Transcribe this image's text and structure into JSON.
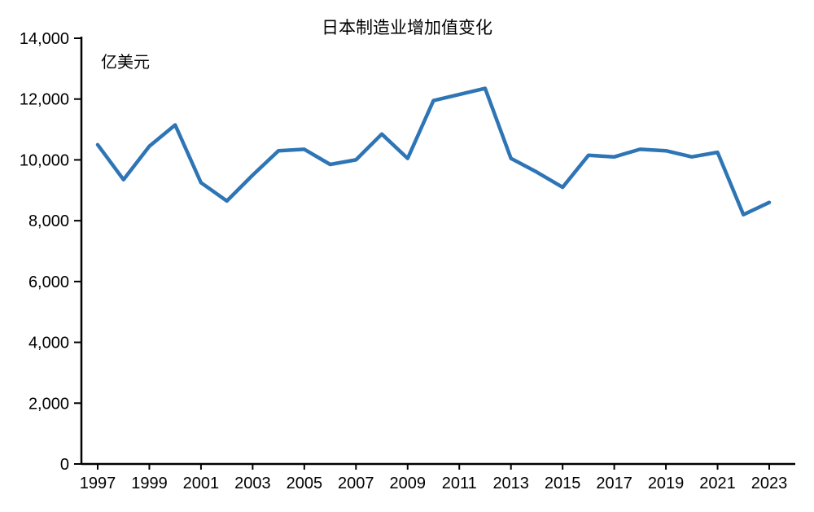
{
  "chart_data": {
    "type": "line",
    "title": "日本制造业增加值变化",
    "unit_label": "亿美元",
    "x": [
      1997,
      1998,
      1999,
      2000,
      2001,
      2002,
      2003,
      2004,
      2005,
      2006,
      2007,
      2008,
      2009,
      2010,
      2011,
      2012,
      2013,
      2014,
      2015,
      2016,
      2017,
      2018,
      2019,
      2020,
      2021,
      2022,
      2023
    ],
    "values": [
      10500,
      9350,
      10450,
      11150,
      9250,
      8650,
      9500,
      10300,
      10350,
      9850,
      10000,
      10850,
      10050,
      11950,
      12150,
      12350,
      10050,
      9600,
      9100,
      10150,
      10100,
      10350,
      10300,
      10100,
      10250,
      8200,
      8600
    ],
    "x_tick_labels": [
      "1997",
      "1999",
      "2001",
      "2003",
      "2005",
      "2007",
      "2009",
      "2011",
      "2013",
      "2015",
      "2017",
      "2019",
      "2021",
      "2023"
    ],
    "ylim": [
      0,
      14000
    ],
    "y_tick_step": 2000,
    "grid": false,
    "legend": "none",
    "line_color": "#2E75B6",
    "axis_color": "#000000"
  }
}
